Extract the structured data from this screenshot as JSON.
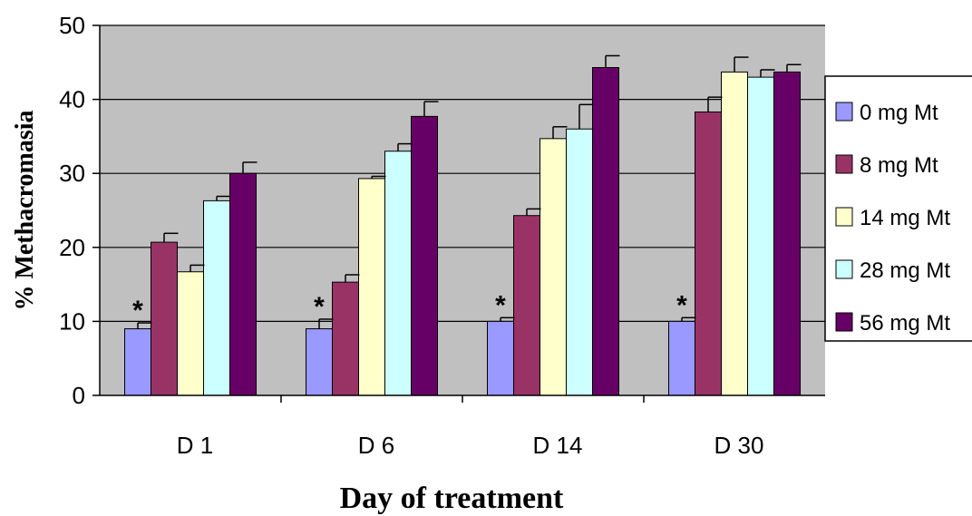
{
  "chart_data": {
    "type": "bar",
    "title": "",
    "xlabel": "Day of treatment",
    "ylabel": "% Methacromasia",
    "ylim": [
      0,
      50
    ],
    "yticks": [
      0,
      10,
      20,
      30,
      40,
      50
    ],
    "grid": true,
    "legend_position": "right",
    "categories": [
      "D 1",
      "D 6",
      "D 14",
      "D 30"
    ],
    "series": [
      {
        "name": "0 mg Mt",
        "color": "#9999ff",
        "values": [
          9.0,
          9.0,
          10.0,
          10.0
        ],
        "errors": [
          0.8,
          1.3,
          0.5,
          0.5
        ]
      },
      {
        "name": "8 mg Mt",
        "color": "#993366",
        "values": [
          20.7,
          15.3,
          24.3,
          38.3
        ],
        "errors": [
          1.2,
          1.0,
          0.9,
          2.0
        ]
      },
      {
        "name": "14 mg Mt",
        "color": "#ffffcc",
        "values": [
          16.7,
          29.3,
          34.7,
          43.7
        ],
        "errors": [
          0.9,
          0.3,
          1.6,
          2.0
        ]
      },
      {
        "name": "28 mg Mt",
        "color": "#ccffff",
        "values": [
          26.3,
          33.0,
          36.0,
          43.0
        ],
        "errors": [
          0.6,
          1.0,
          3.3,
          1.0
        ]
      },
      {
        "name": "56 mg Mt",
        "color": "#660066",
        "values": [
          30.0,
          37.7,
          44.3,
          43.7
        ],
        "errors": [
          1.5,
          2.0,
          1.6,
          1.0
        ]
      }
    ],
    "annotations": [
      {
        "text": "*",
        "series": "0 mg Mt",
        "category": "D 1"
      },
      {
        "text": "*",
        "series": "0 mg Mt",
        "category": "D 6"
      },
      {
        "text": "*",
        "series": "0 mg Mt",
        "category": "D 14"
      },
      {
        "text": "*",
        "series": "0 mg Mt",
        "category": "D 30"
      }
    ]
  }
}
